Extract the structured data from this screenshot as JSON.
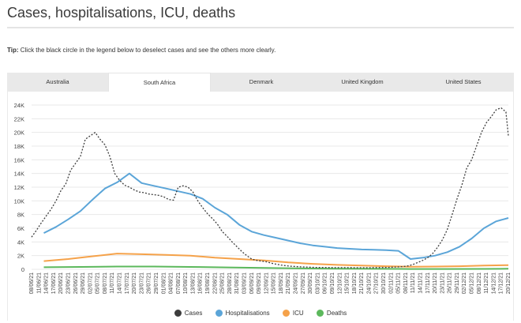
{
  "title": "Cases, hospitalisations, ICU, deaths",
  "tip": {
    "label": "Tip:",
    "text": " Click the black circle in the legend below to deselect cases and see the others more clearly."
  },
  "tabs": [
    {
      "label": "Australia",
      "active": false
    },
    {
      "label": "South Africa",
      "active": true
    },
    {
      "label": "Denmark",
      "active": false
    },
    {
      "label": "United Kingdom",
      "active": false
    },
    {
      "label": "United States",
      "active": false
    }
  ],
  "colors": {
    "cases": "#3d3d3d",
    "hospitalisations": "#5ba5d8",
    "icu": "#f5a24a",
    "deaths": "#5cb85c",
    "grid": "#e8e8e8"
  },
  "chart_data": {
    "type": "line",
    "title": "Cases, hospitalisations, ICU, deaths",
    "ylim": [
      0,
      24000
    ],
    "ytick_labels": [
      "0",
      "2K",
      "4K",
      "6K",
      "8K",
      "10K",
      "12K",
      "14K",
      "16K",
      "18K",
      "20K",
      "22K",
      "24K"
    ],
    "xtick_labels": [
      "08/06/21",
      "11/06/21",
      "14/06/21",
      "17/06/21",
      "20/06/21",
      "23/06/21",
      "26/06/21",
      "29/06/21",
      "02/07/21",
      "05/07/21",
      "08/07/21",
      "11/07/21",
      "14/07/21",
      "17/07/21",
      "20/07/21",
      "23/07/21",
      "26/07/21",
      "29/07/21",
      "01/08/21",
      "04/08/21",
      "07/08/21",
      "10/08/21",
      "13/08/21",
      "16/08/21",
      "19/08/21",
      "22/08/21",
      "25/08/21",
      "28/08/21",
      "31/08/21",
      "03/09/21",
      "06/09/21",
      "09/09/21",
      "12/09/21",
      "15/09/21",
      "18/09/21",
      "21/09/21",
      "24/09/21",
      "27/09/21",
      "30/09/21",
      "03/10/21",
      "06/10/21",
      "09/10/21",
      "12/10/21",
      "15/10/21",
      "18/10/21",
      "21/10/21",
      "24/10/21",
      "27/10/21",
      "30/10/21",
      "02/11/21",
      "05/11/21",
      "08/11/21",
      "11/11/21",
      "14/11/21",
      "17/11/21",
      "20/11/21",
      "23/11/21",
      "26/11/21",
      "29/11/21",
      "02/12/21",
      "05/12/21",
      "08/12/21",
      "11/12/21",
      "14/12/21",
      "17/12/21",
      "20/12/21"
    ],
    "series": [
      {
        "name": "Cases",
        "style": "dashed",
        "x": [
          0,
          2,
          4,
          6,
          8,
          10,
          12,
          14,
          16,
          18,
          20,
          22,
          24,
          26,
          28,
          30,
          32,
          34,
          36,
          38,
          40,
          42,
          44,
          46,
          48,
          50,
          52,
          54,
          56,
          58,
          60,
          62,
          64,
          66,
          68,
          70,
          72,
          74,
          76,
          78,
          80,
          82,
          84,
          86,
          88,
          90,
          92,
          94,
          96,
          98,
          100,
          102,
          104,
          106,
          108,
          110,
          112,
          114,
          116,
          118,
          120,
          122,
          124,
          126,
          128,
          130,
          132,
          134,
          136,
          138,
          140,
          142,
          144,
          146,
          148,
          150,
          152,
          154,
          156,
          158,
          160,
          162,
          164,
          166,
          168,
          170,
          172,
          174,
          176,
          178,
          180,
          182,
          184,
          186,
          188,
          190,
          192,
          194,
          195
        ],
        "values": [
          4700,
          5700,
          6800,
          7800,
          8800,
          10000,
          11500,
          12500,
          14500,
          15500,
          16500,
          19000,
          19500,
          20000,
          19000,
          18200,
          16500,
          14000,
          13000,
          12300,
          12000,
          11600,
          11300,
          11200,
          11000,
          10900,
          10800,
          10600,
          10200,
          10100,
          12000,
          12200,
          12000,
          11300,
          10000,
          9000,
          8100,
          7400,
          6600,
          5500,
          4800,
          4000,
          3300,
          2600,
          2000,
          1500,
          1300,
          1200,
          1100,
          900,
          750,
          620,
          520,
          450,
          400,
          360,
          330,
          300,
          280,
          270,
          260,
          250,
          240,
          240,
          240,
          240,
          230,
          230,
          230,
          230,
          240,
          250,
          260,
          280,
          310,
          350,
          400,
          500,
          700,
          1000,
          1300,
          1700,
          2300,
          3200,
          4300,
          5800,
          8000,
          10300,
          12300,
          14800,
          16000,
          18000,
          20000,
          21400,
          22300,
          23300,
          23600,
          23000,
          19500
        ]
      },
      {
        "name": "Hospitalisations",
        "style": "solid",
        "x": [
          5,
          10,
          15,
          20,
          25,
          30,
          35,
          40,
          45,
          50,
          55,
          60,
          65,
          70,
          75,
          80,
          85,
          90,
          95,
          100,
          105,
          110,
          115,
          120,
          125,
          130,
          135,
          140,
          145,
          150,
          155,
          160,
          165,
          170,
          175,
          180,
          185,
          190,
          195
        ],
        "values": [
          5300,
          6200,
          7300,
          8500,
          10200,
          11800,
          12700,
          14000,
          12600,
          12200,
          11800,
          11400,
          11000,
          10300,
          9000,
          8000,
          6500,
          5500,
          5000,
          4600,
          4200,
          3800,
          3500,
          3300,
          3100,
          3000,
          2900,
          2850,
          2800,
          2700,
          1500,
          1700,
          2000,
          2500,
          3300,
          4500,
          6000,
          7000,
          7500
        ]
      },
      {
        "name": "ICU",
        "style": "solid",
        "x": [
          5,
          15,
          25,
          35,
          45,
          55,
          65,
          75,
          85,
          95,
          105,
          115,
          125,
          135,
          145,
          155,
          165,
          175,
          185,
          195
        ],
        "values": [
          1200,
          1500,
          1900,
          2300,
          2200,
          2100,
          2000,
          1700,
          1500,
          1300,
          1000,
          800,
          650,
          550,
          450,
          380,
          400,
          450,
          550,
          600
        ]
      },
      {
        "name": "Deaths",
        "style": "solid",
        "x": [
          5,
          20,
          35,
          50,
          65,
          80,
          95,
          110,
          125,
          140,
          155,
          170,
          185,
          195
        ],
        "values": [
          300,
          350,
          400,
          400,
          350,
          280,
          200,
          130,
          90,
          70,
          50,
          50,
          60,
          80
        ]
      }
    ]
  },
  "legend": [
    {
      "label": "Cases"
    },
    {
      "label": "Hospitalisations"
    },
    {
      "label": "ICU"
    },
    {
      "label": "Deaths"
    }
  ]
}
